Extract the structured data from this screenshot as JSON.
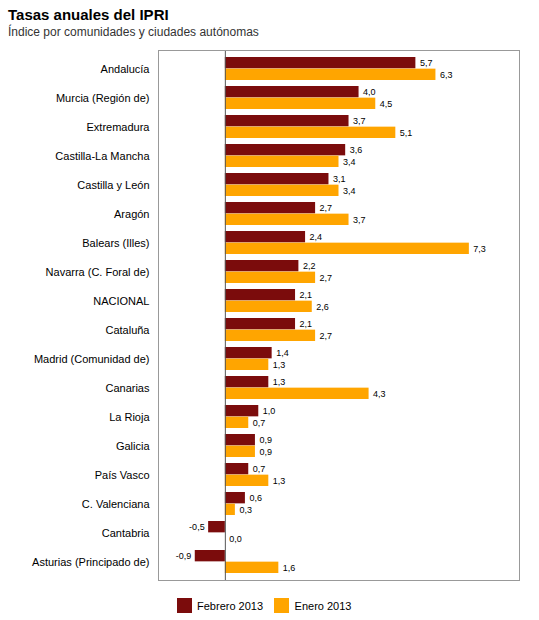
{
  "chart_data": {
    "type": "bar",
    "orientation": "horizontal",
    "title": "Tasas anuales del IPRI",
    "subtitle": "Índice por comunidades y ciudades autónomas",
    "categories": [
      "Andalucía",
      "Murcia (Región de)",
      "Extremadura",
      "Castilla-La Mancha",
      "Castilla y León",
      "Aragón",
      "Balears (Illes)",
      "Navarra (C. Foral de)",
      "NACIONAL",
      "Cataluña",
      "Madrid (Comunidad de)",
      "Canarias",
      "La Rioja",
      "Galicia",
      "País Vasco",
      "C. Valenciana",
      "Cantabria",
      "Asturias (Principado de)"
    ],
    "series": [
      {
        "name": "Febrero 2013",
        "color": "#7B0C0C",
        "values": [
          5.7,
          4.0,
          3.7,
          3.6,
          3.1,
          2.7,
          2.4,
          2.2,
          2.1,
          2.1,
          1.4,
          1.3,
          1.0,
          0.9,
          0.7,
          0.6,
          -0.5,
          -0.9
        ],
        "value_labels": [
          "5,7",
          "4,0",
          "3,7",
          "3,6",
          "3,1",
          "2,7",
          "2,4",
          "2,2",
          "2,1",
          "2,1",
          "1,4",
          "1,3",
          "1,0",
          "0,9",
          "0,7",
          "0,6",
          "-0,5",
          "-0,9"
        ]
      },
      {
        "name": "Enero 2013",
        "color": "#FFA500",
        "values": [
          6.3,
          4.5,
          5.1,
          3.4,
          3.4,
          3.7,
          7.3,
          2.7,
          2.6,
          2.7,
          1.3,
          4.3,
          0.7,
          0.9,
          1.3,
          0.3,
          0.0,
          1.6
        ],
        "value_labels": [
          "6,3",
          "4,5",
          "5,1",
          "3,4",
          "3,4",
          "3,7",
          "7,3",
          "2,7",
          "2,6",
          "2,7",
          "1,3",
          "4,3",
          "0,7",
          "0,9",
          "1,3",
          "0,3",
          "0,0",
          "1,6"
        ]
      }
    ],
    "xlim": [
      -2.0,
      8.8
    ],
    "tick_labels": "y",
    "data_labels": true,
    "grid": false,
    "legend": "bottom"
  }
}
